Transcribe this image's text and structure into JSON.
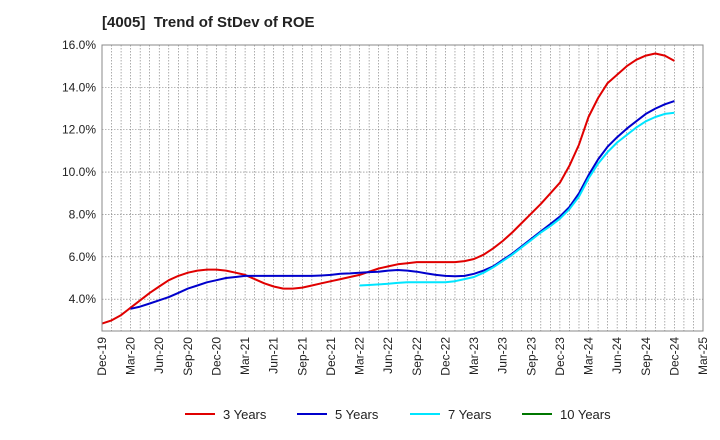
{
  "chart_data": {
    "type": "line",
    "title": "[4005]  Trend of StDev of ROE",
    "xlabel": "",
    "ylabel": "",
    "ylim": [
      2.5,
      16.0
    ],
    "yticks": [
      4.0,
      6.0,
      8.0,
      10.0,
      12.0,
      14.0,
      16.0
    ],
    "ytick_labels": [
      "4.0%",
      "6.0%",
      "8.0%",
      "10.0%",
      "12.0%",
      "14.0%",
      "16.0%"
    ],
    "xlim": [
      "Dec-19",
      "Mar-25"
    ],
    "xticks": [
      "Dec-19",
      "Mar-20",
      "Jun-20",
      "Sep-20",
      "Dec-20",
      "Mar-21",
      "Jun-21",
      "Sep-21",
      "Dec-21",
      "Mar-22",
      "Jun-22",
      "Sep-22",
      "Dec-22",
      "Mar-23",
      "Jun-23",
      "Sep-23",
      "Dec-23",
      "Mar-24",
      "Jun-24",
      "Sep-24",
      "Dec-24",
      "Mar-25"
    ],
    "grid": true,
    "legend_position": "bottom",
    "series": [
      {
        "name": "3 Years",
        "color": "#e00000",
        "x": [
          "Dec-19",
          "Jan-20",
          "Feb-20",
          "Mar-20",
          "Apr-20",
          "May-20",
          "Jun-20",
          "Jul-20",
          "Aug-20",
          "Sep-20",
          "Oct-20",
          "Nov-20",
          "Dec-20",
          "Jan-21",
          "Feb-21",
          "Mar-21",
          "Apr-21",
          "May-21",
          "Jun-21",
          "Jul-21",
          "Aug-21",
          "Sep-21",
          "Oct-21",
          "Nov-21",
          "Dec-21",
          "Jan-22",
          "Feb-22",
          "Mar-22",
          "Apr-22",
          "May-22",
          "Jun-22",
          "Jul-22",
          "Aug-22",
          "Sep-22",
          "Oct-22",
          "Nov-22",
          "Dec-22",
          "Jan-23",
          "Feb-23",
          "Mar-23",
          "Apr-23",
          "May-23",
          "Jun-23",
          "Jul-23",
          "Aug-23",
          "Sep-23",
          "Oct-23",
          "Nov-23",
          "Dec-23",
          "Jan-24",
          "Feb-24",
          "Mar-24",
          "Apr-24",
          "May-24",
          "Jun-24",
          "Jul-24",
          "Aug-24",
          "Sep-24",
          "Oct-24",
          "Nov-24",
          "Dec-24"
        ],
        "values": [
          2.85,
          3.0,
          3.25,
          3.6,
          3.95,
          4.3,
          4.6,
          4.9,
          5.1,
          5.25,
          5.35,
          5.4,
          5.4,
          5.35,
          5.25,
          5.15,
          4.95,
          4.75,
          4.6,
          4.5,
          4.5,
          4.55,
          4.65,
          4.75,
          4.85,
          4.95,
          5.05,
          5.15,
          5.3,
          5.45,
          5.55,
          5.65,
          5.7,
          5.75,
          5.75,
          5.75,
          5.75,
          5.75,
          5.8,
          5.9,
          6.1,
          6.4,
          6.75,
          7.15,
          7.6,
          8.05,
          8.5,
          9.0,
          9.5,
          10.3,
          11.3,
          12.6,
          13.5,
          14.2,
          14.6,
          15.0,
          15.3,
          15.5,
          15.6,
          15.5,
          15.25
        ]
      },
      {
        "name": "5 Years",
        "color": "#0000cc",
        "x": [
          "Mar-20",
          "Apr-20",
          "May-20",
          "Jun-20",
          "Jul-20",
          "Aug-20",
          "Sep-20",
          "Oct-20",
          "Nov-20",
          "Dec-20",
          "Jan-21",
          "Feb-21",
          "Mar-21",
          "Apr-21",
          "May-21",
          "Jun-21",
          "Jul-21",
          "Aug-21",
          "Sep-21",
          "Oct-21",
          "Nov-21",
          "Dec-21",
          "Jan-22",
          "Feb-22",
          "Mar-22",
          "Apr-22",
          "May-22",
          "Jun-22",
          "Jul-22",
          "Aug-22",
          "Sep-22",
          "Oct-22",
          "Nov-22",
          "Dec-22",
          "Jan-23",
          "Feb-23",
          "Mar-23",
          "Apr-23",
          "May-23",
          "Jun-23",
          "Jul-23",
          "Aug-23",
          "Sep-23",
          "Oct-23",
          "Nov-23",
          "Dec-23",
          "Jan-24",
          "Feb-24",
          "Mar-24",
          "Apr-24",
          "May-24",
          "Jun-24",
          "Jul-24",
          "Aug-24",
          "Sep-24",
          "Oct-24",
          "Nov-24",
          "Dec-24"
        ],
        "values": [
          3.55,
          3.65,
          3.8,
          3.95,
          4.1,
          4.3,
          4.5,
          4.65,
          4.8,
          4.9,
          5.0,
          5.05,
          5.1,
          5.1,
          5.1,
          5.1,
          5.1,
          5.1,
          5.1,
          5.1,
          5.12,
          5.15,
          5.2,
          5.22,
          5.25,
          5.28,
          5.3,
          5.35,
          5.38,
          5.35,
          5.3,
          5.22,
          5.15,
          5.1,
          5.08,
          5.1,
          5.2,
          5.35,
          5.55,
          5.85,
          6.15,
          6.5,
          6.85,
          7.2,
          7.55,
          7.9,
          8.35,
          9.0,
          9.85,
          10.6,
          11.2,
          11.65,
          12.05,
          12.4,
          12.75,
          13.0,
          13.2,
          13.35
        ]
      },
      {
        "name": "7 Years",
        "color": "#00e5ff",
        "x": [
          "Mar-22",
          "Apr-22",
          "May-22",
          "Jun-22",
          "Jul-22",
          "Aug-22",
          "Sep-22",
          "Oct-22",
          "Nov-22",
          "Dec-22",
          "Jan-23",
          "Feb-23",
          "Mar-23",
          "Apr-23",
          "May-23",
          "Jun-23",
          "Jul-23",
          "Aug-23",
          "Sep-23",
          "Oct-23",
          "Nov-23",
          "Dec-23",
          "Jan-24",
          "Feb-24",
          "Mar-24",
          "Apr-24",
          "May-24",
          "Jun-24",
          "Jul-24",
          "Aug-24",
          "Sep-24",
          "Oct-24",
          "Nov-24",
          "Dec-24"
        ],
        "values": [
          4.65,
          4.67,
          4.7,
          4.73,
          4.77,
          4.8,
          4.8,
          4.8,
          4.8,
          4.8,
          4.85,
          4.95,
          5.05,
          5.25,
          5.5,
          5.8,
          6.1,
          6.45,
          6.8,
          7.15,
          7.45,
          7.8,
          8.25,
          8.85,
          9.7,
          10.4,
          10.95,
          11.4,
          11.75,
          12.1,
          12.4,
          12.6,
          12.75,
          12.8
        ]
      },
      {
        "name": "10 Years",
        "color": "#007700",
        "x": [],
        "values": []
      }
    ]
  }
}
